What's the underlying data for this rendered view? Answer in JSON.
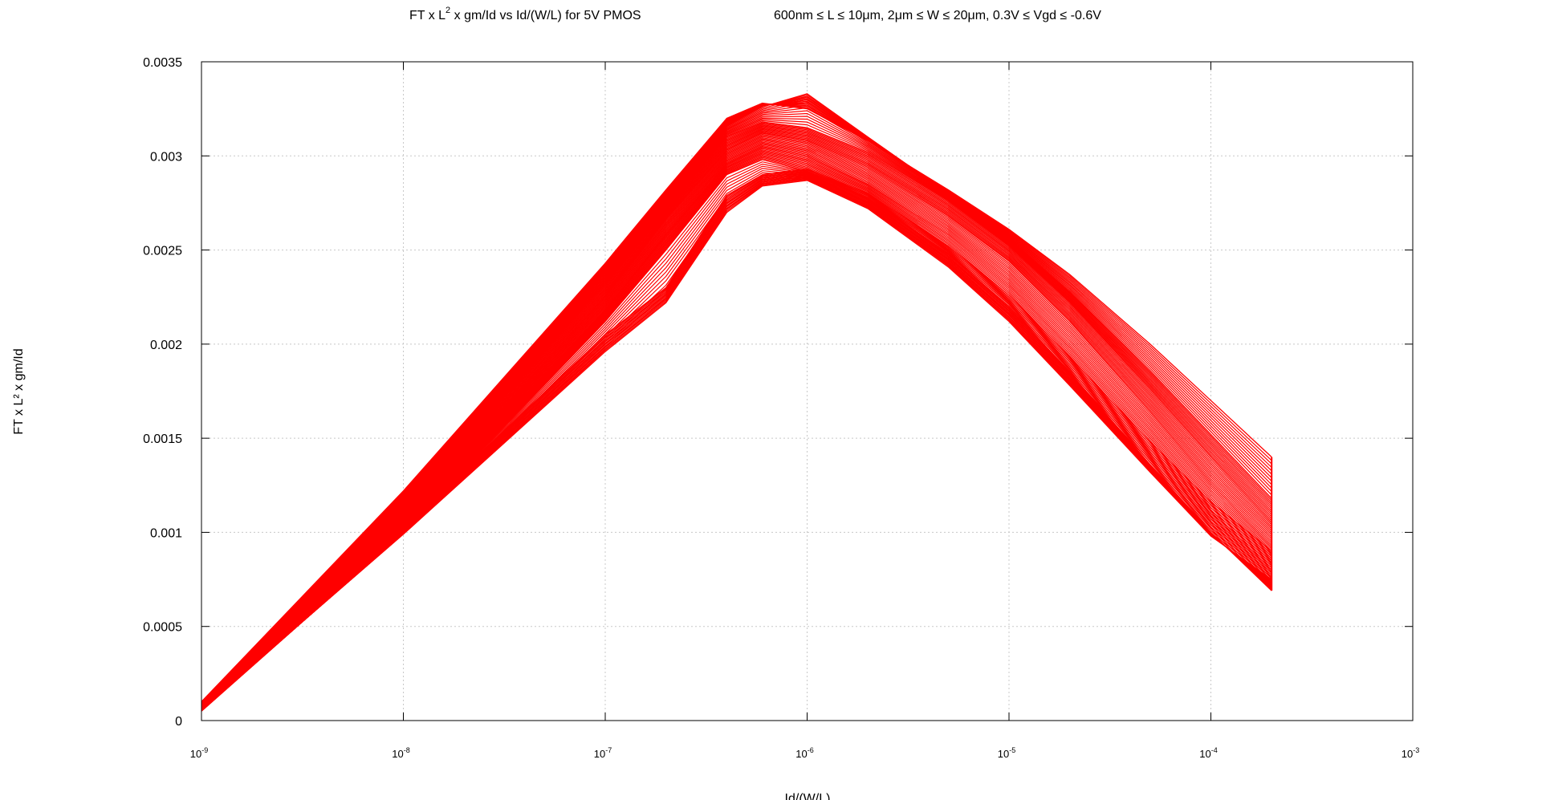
{
  "chart_data": {
    "type": "line",
    "title_parts": {
      "main_prefix": "FT x L",
      "main_sup": "2",
      "main_suffix": " x gm/Id vs Id/(W/L) for 5V PMOS",
      "conditions": "600nm ≤ L ≤ 10μm, 2μm ≤ W ≤ 20μm, 0.3V ≤ Vgd ≤ -0.6V"
    },
    "xlabel": "Id/(W/L)",
    "ylabel": "FT x L² x gm/Id",
    "xscale": "log",
    "xlim": [
      1e-09,
      0.001
    ],
    "ylim": [
      0,
      0.0035
    ],
    "grid": true,
    "legend": "none",
    "x_ticks": [
      {
        "base": "10",
        "exp": "-9"
      },
      {
        "base": "10",
        "exp": "-8"
      },
      {
        "base": "10",
        "exp": "-7"
      },
      {
        "base": "10",
        "exp": "-6"
      },
      {
        "base": "10",
        "exp": "-5"
      },
      {
        "base": "10",
        "exp": "-4"
      },
      {
        "base": "10",
        "exp": "-3"
      }
    ],
    "y_ticks": [
      "0",
      "0.0005",
      "0.001",
      "0.0015",
      "0.002",
      "0.0025",
      "0.003",
      "0.0035"
    ],
    "series_color": "#ff0000",
    "x": [
      1e-09,
      1e-08,
      1e-07,
      2e-07,
      4e-07,
      6e-07,
      1e-06,
      2e-06,
      5e-06,
      1e-05,
      2e-05,
      5e-05,
      0.0001,
      0.0002
    ],
    "series": [
      {
        "values": [
          0.0001,
          0.00122,
          0.00243,
          0.00282,
          0.0032,
          0.00328,
          0.00325,
          0.00308,
          0.00282,
          0.00261,
          0.00237,
          0.002,
          0.0017,
          0.0014
        ]
      },
      {
        "values": [
          9e-05,
          0.00118,
          0.00238,
          0.00277,
          0.00316,
          0.00326,
          0.00333,
          0.0031,
          0.0028,
          0.00256,
          0.00228,
          0.00186,
          0.00152,
          0.00118
        ]
      },
      {
        "values": [
          8e-05,
          0.00113,
          0.00232,
          0.00272,
          0.0031,
          0.00318,
          0.00315,
          0.00302,
          0.00276,
          0.00252,
          0.00222,
          0.00176,
          0.0014,
          0.00105
        ]
      },
      {
        "values": [
          7e-05,
          0.00108,
          0.00225,
          0.00266,
          0.00303,
          0.00312,
          0.00308,
          0.00294,
          0.00268,
          0.00244,
          0.00212,
          0.00164,
          0.00126,
          0.00092
        ]
      },
      {
        "values": [
          6e-05,
          0.00104,
          0.00218,
          0.00258,
          0.00296,
          0.00305,
          0.003,
          0.00285,
          0.00258,
          0.00232,
          0.00198,
          0.0015,
          0.00112,
          0.0008
        ]
      },
      {
        "values": [
          5e-05,
          0.001,
          0.00212,
          0.0025,
          0.0029,
          0.00298,
          0.00292,
          0.00278,
          0.00248,
          0.0022,
          0.00185,
          0.00136,
          0.001,
          0.00069
        ]
      },
      {
        "values": [
          6e-05,
          0.00099,
          0.00196,
          0.00222,
          0.0027,
          0.00284,
          0.00287,
          0.00272,
          0.00241,
          0.00212,
          0.00178,
          0.00132,
          0.00098,
          0.00075
        ]
      },
      {
        "values": [
          7e-05,
          0.00103,
          0.00205,
          0.0023,
          0.00279,
          0.0029,
          0.00293,
          0.0028,
          0.00252,
          0.00226,
          0.00193,
          0.00148,
          0.00116,
          0.0009
        ]
      }
    ]
  }
}
